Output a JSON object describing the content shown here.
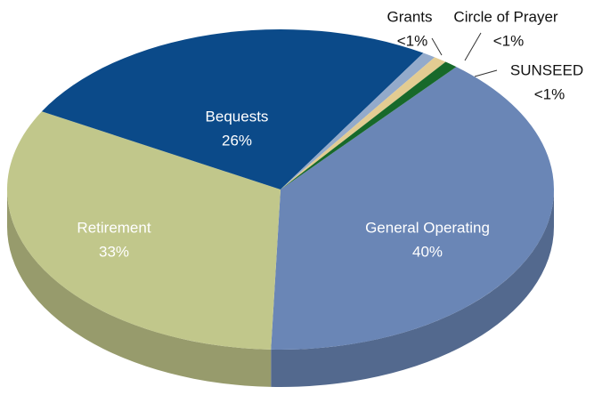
{
  "chart_data": {
    "type": "pie",
    "categories": [
      "General Operating",
      "Retirement",
      "Bequests",
      "Grants",
      "Circle of Prayer",
      "SUNSEED"
    ],
    "values": [
      40,
      33,
      26,
      0.8,
      0.8,
      0.8
    ],
    "value_labels": [
      "40%",
      "33%",
      "26%",
      "<1%",
      "<1%",
      "<1%"
    ],
    "colors": [
      "#6a86b6",
      "#c1c78b",
      "#0b4a89",
      "#93aacb",
      "#e3cc92",
      "#17692a"
    ]
  }
}
